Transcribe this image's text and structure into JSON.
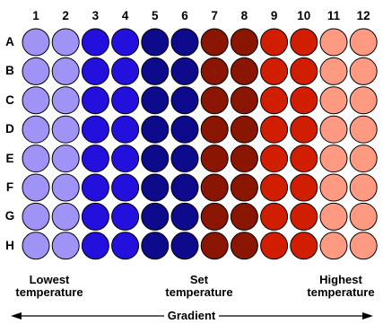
{
  "columns": [
    "1",
    "2",
    "3",
    "4",
    "5",
    "6",
    "7",
    "8",
    "9",
    "10",
    "11",
    "12"
  ],
  "rows": [
    "A",
    "B",
    "C",
    "D",
    "E",
    "F",
    "G",
    "H"
  ],
  "column_colors": [
    "#9f94f5",
    "#9f94f5",
    "#2410dc",
    "#2410dc",
    "#0e0a8c",
    "#0e0a8c",
    "#8a1500",
    "#8a1500",
    "#d21e00",
    "#d21e00",
    "#ff9a82",
    "#ff9a82"
  ],
  "labels": {
    "lowest": [
      "Lowest",
      "temperature"
    ],
    "set": [
      "Set",
      "temperature"
    ],
    "highest": [
      "Highest",
      "temperature"
    ],
    "gradient": "Gradient"
  }
}
